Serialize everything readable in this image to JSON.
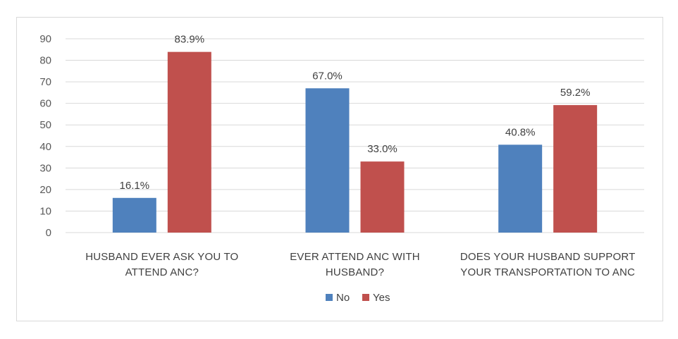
{
  "chart_data": {
    "type": "bar",
    "categories": [
      [
        "HUSBAND EVER ASK YOU TO",
        "ATTEND ANC?"
      ],
      [
        "EVER ATTEND ANC WITH",
        "HUSBAND?"
      ],
      [
        "DOES YOUR HUSBAND SUPPORT",
        "YOUR TRANSPORTATION TO ANC"
      ]
    ],
    "series": [
      {
        "name": "No",
        "color": "#4f81bd",
        "values": [
          16.1,
          67.0,
          40.8
        ],
        "labels": [
          "16.1%",
          "67.0%",
          "40.8%"
        ]
      },
      {
        "name": "Yes",
        "color": "#c0504d",
        "values": [
          83.9,
          33.0,
          59.2
        ],
        "labels": [
          "83.9%",
          "33.0%",
          "59.2%"
        ]
      }
    ],
    "ylim": [
      0,
      90
    ],
    "yticks": [
      "0",
      "10",
      "20",
      "30",
      "40",
      "50",
      "60",
      "70",
      "80",
      "90"
    ],
    "grid": true,
    "legend": "bottom",
    "title": "",
    "xlabel": "",
    "ylabel": ""
  }
}
